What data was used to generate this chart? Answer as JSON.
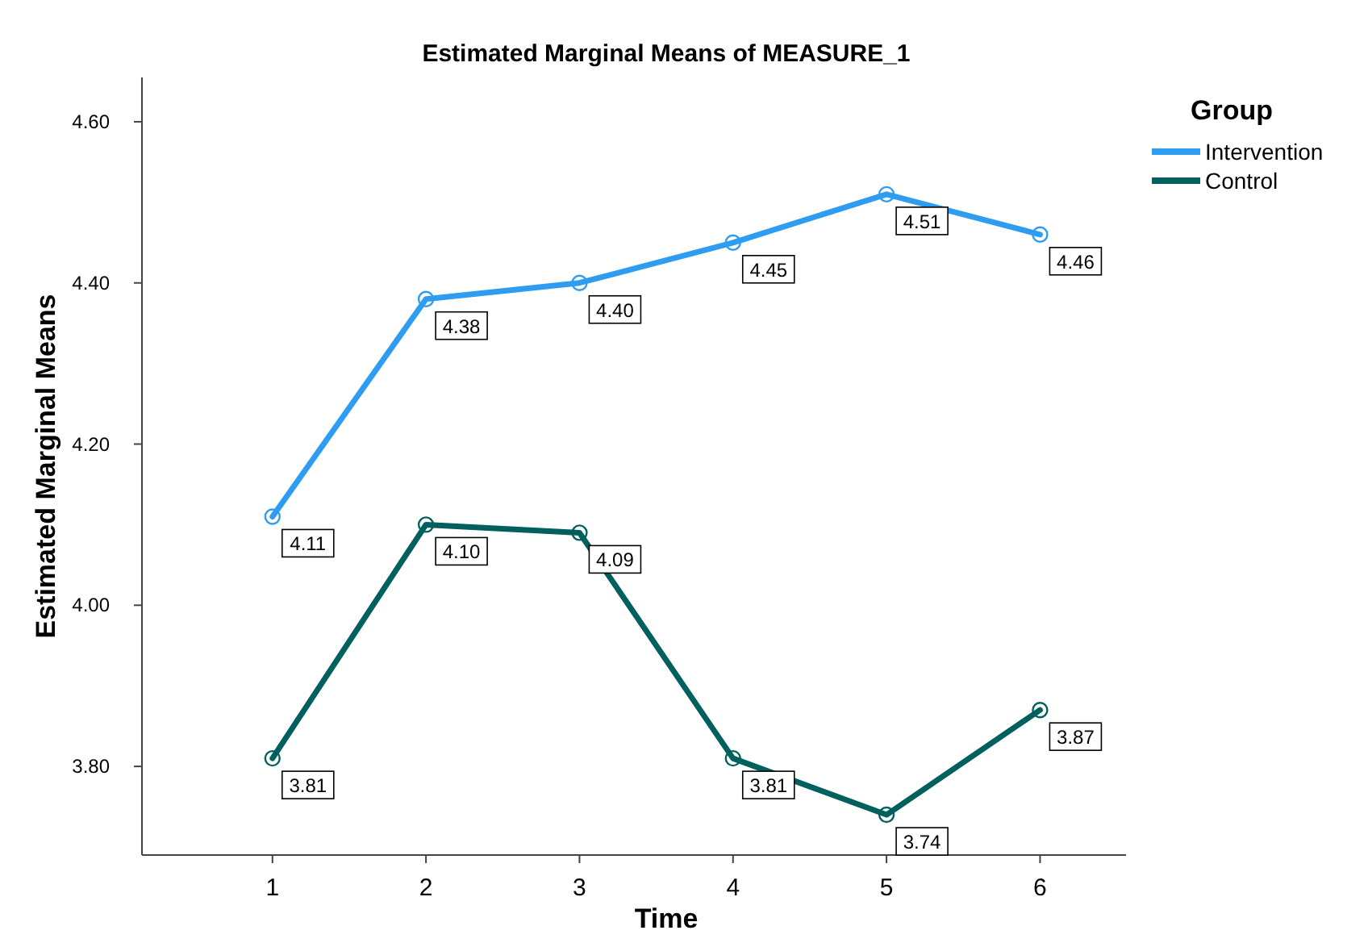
{
  "chart_data": {
    "type": "line",
    "title": "Estimated Marginal Means of MEASURE_1",
    "xlabel": "Time",
    "ylabel": "Estimated Marginal Means",
    "legend_title": "Group",
    "legend": "right",
    "marker": "circle",
    "line_style": "solid",
    "grid": false,
    "x": [
      1,
      2,
      3,
      4,
      5,
      6
    ],
    "xlim": [
      0.15,
      6.56
    ],
    "xticks": [
      1,
      2,
      3,
      4,
      5,
      6
    ],
    "ylim": [
      3.69,
      4.655
    ],
    "yticks": [
      {
        "value": 3.8,
        "label": "3.80"
      },
      {
        "value": 4.0,
        "label": "4.00"
      },
      {
        "value": 4.2,
        "label": "4.20"
      },
      {
        "value": 4.4,
        "label": "4.40"
      },
      {
        "value": 4.6,
        "label": "4.60"
      }
    ],
    "series": [
      {
        "name": "Intervention",
        "color": "#2e9cf0",
        "values": [
          4.11,
          4.38,
          4.4,
          4.45,
          4.51,
          4.46
        ],
        "value_labels": [
          "4.11",
          "4.38",
          "4.40",
          "4.45",
          "4.51",
          "4.46"
        ]
      },
      {
        "name": "Control",
        "color": "#00605e",
        "values": [
          3.81,
          4.1,
          4.09,
          3.81,
          3.74,
          3.87
        ],
        "value_labels": [
          "3.81",
          "4.10",
          "4.09",
          "3.81",
          "3.74",
          "3.87"
        ]
      }
    ]
  }
}
